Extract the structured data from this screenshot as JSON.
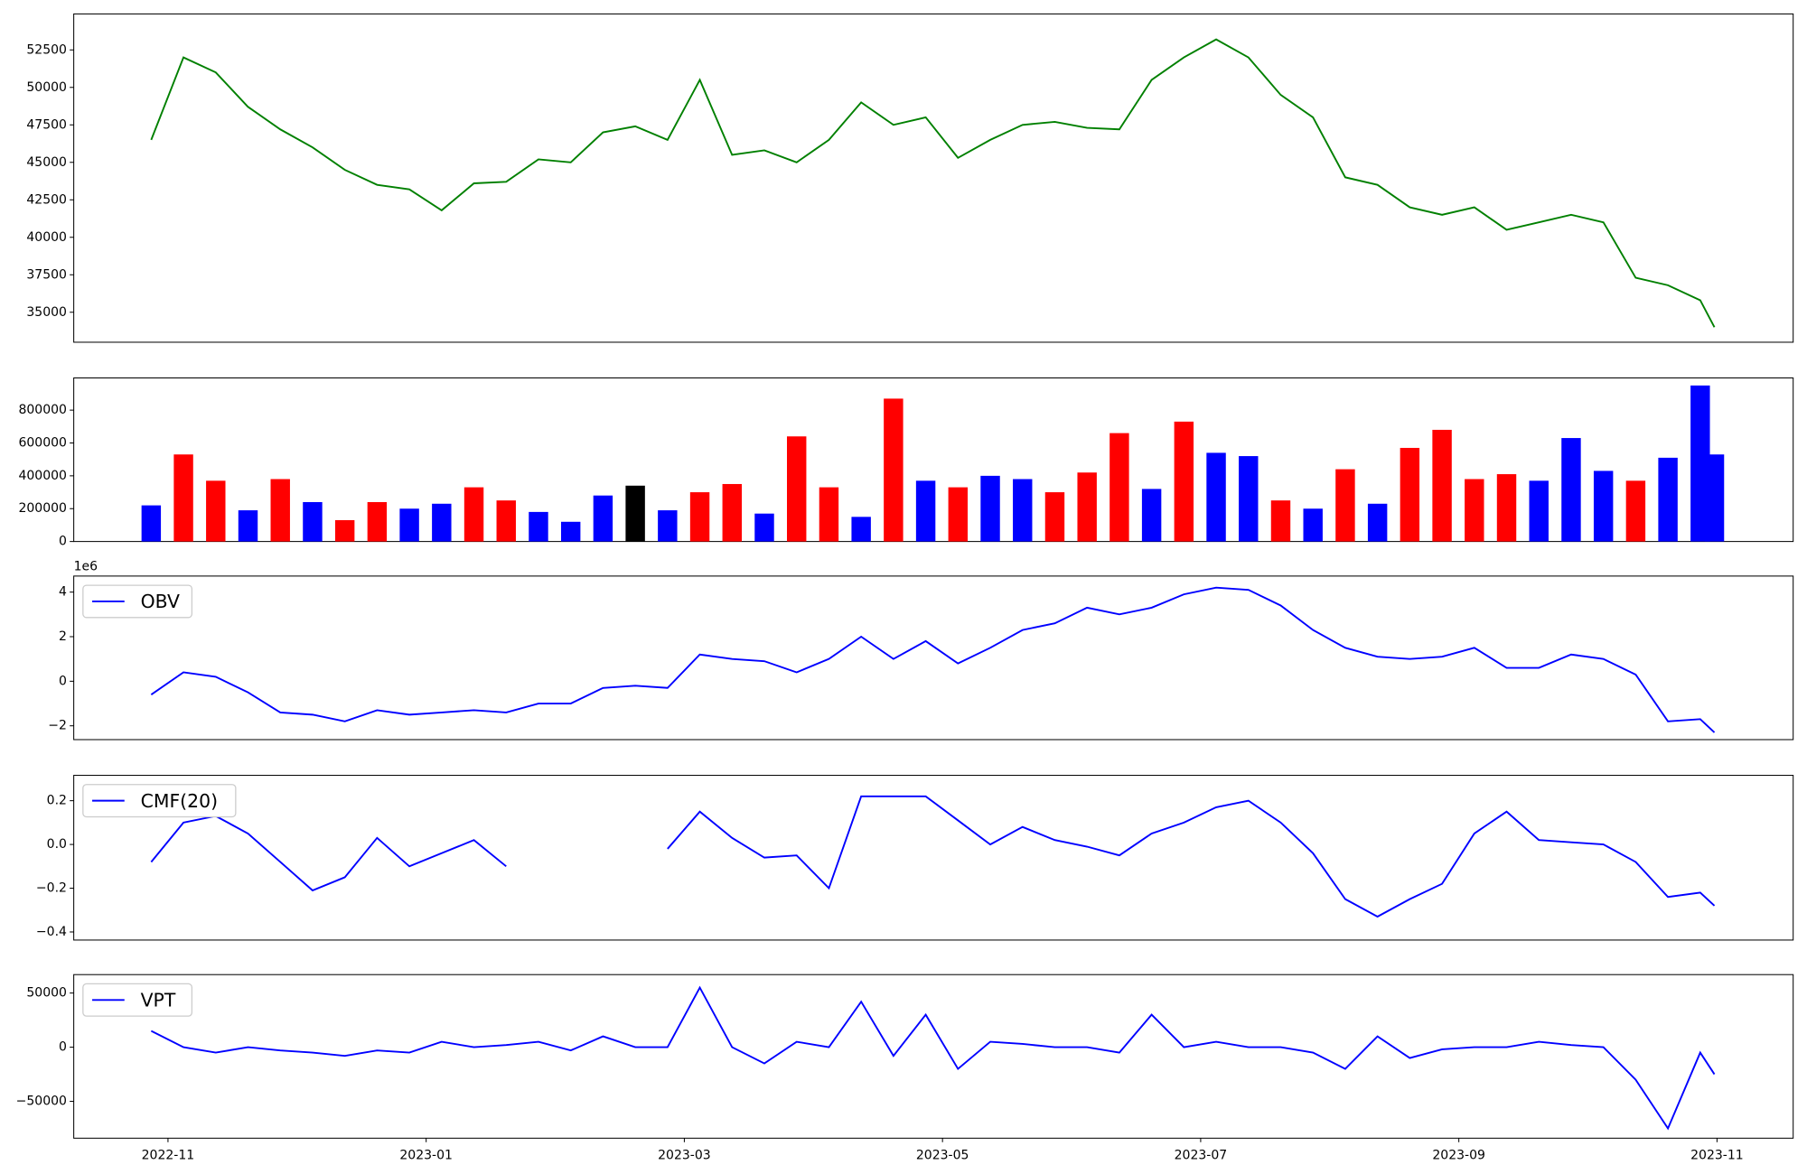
{
  "chart_data": [
    {
      "type": "line",
      "color": "green",
      "x": [
        -0.13,
        0.12,
        0.37,
        0.62,
        0.87,
        1.12,
        1.37,
        1.62,
        1.87,
        2.12,
        2.37,
        2.62,
        2.87,
        3.12,
        3.37,
        3.62,
        3.87,
        4.12,
        4.37,
        4.62,
        4.87,
        5.12,
        5.37,
        5.62,
        5.87,
        6.12,
        6.37,
        6.62,
        6.87,
        7.12,
        7.37,
        7.62,
        7.87,
        8.12,
        8.37,
        8.62,
        8.87,
        9.12,
        9.37,
        9.62,
        9.87,
        10.12,
        10.37,
        10.62,
        10.87,
        11.12,
        11.37,
        11.62,
        11.87,
        11.98
      ],
      "values": [
        46500,
        52000,
        51000,
        48700,
        47200,
        46000,
        44500,
        43500,
        43200,
        41800,
        43600,
        43700,
        45200,
        45000,
        47000,
        47400,
        46500,
        50500,
        45500,
        45800,
        45000,
        46500,
        49000,
        47500,
        48000,
        45300,
        46500,
        47500,
        47700,
        47300,
        47200,
        50500,
        52000,
        53200,
        52000,
        49500,
        48000,
        44000,
        43500,
        42000,
        41500,
        42000,
        40500,
        41000,
        41500,
        41000,
        37300,
        36800,
        35800,
        34000
      ],
      "xlim": [
        -0.73,
        12.59
      ],
      "ylim": [
        33000,
        54900
      ],
      "yticks": [
        35000,
        37500,
        40000,
        42500,
        45000,
        47500,
        50000,
        52500
      ]
    },
    {
      "type": "bar",
      "x": [
        -0.13,
        0.12,
        0.37,
        0.62,
        0.87,
        1.12,
        1.37,
        1.62,
        1.87,
        2.12,
        2.37,
        2.62,
        2.87,
        3.12,
        3.37,
        3.62,
        3.87,
        4.12,
        4.37,
        4.62,
        4.87,
        5.12,
        5.37,
        5.62,
        5.87,
        6.12,
        6.37,
        6.62,
        6.87,
        7.12,
        7.37,
        7.62,
        7.87,
        8.12,
        8.37,
        8.62,
        8.87,
        9.12,
        9.37,
        9.62,
        9.87,
        10.12,
        10.37,
        10.62,
        10.87,
        11.12,
        11.37,
        11.62,
        11.87,
        11.98
      ],
      "values": [
        220000,
        530000,
        370000,
        190000,
        380000,
        240000,
        130000,
        240000,
        200000,
        230000,
        330000,
        250000,
        180000,
        120000,
        280000,
        340000,
        190000,
        300000,
        350000,
        170000,
        640000,
        330000,
        150000,
        870000,
        370000,
        330000,
        400000,
        380000,
        300000,
        420000,
        660000,
        320000,
        730000,
        540000,
        520000,
        250000,
        200000,
        440000,
        230000,
        570000,
        680000,
        380000,
        410000,
        370000,
        630000,
        430000,
        370000,
        510000,
        950000,
        530000
      ],
      "colors": [
        "blue",
        "red",
        "red",
        "blue",
        "red",
        "blue",
        "red",
        "red",
        "blue",
        "blue",
        "red",
        "red",
        "blue",
        "blue",
        "blue",
        "black",
        "blue",
        "red",
        "red",
        "blue",
        "red",
        "red",
        "blue",
        "red",
        "blue",
        "red",
        "blue",
        "blue",
        "red",
        "red",
        "red",
        "blue",
        "red",
        "blue",
        "blue",
        "red",
        "blue",
        "red",
        "blue",
        "red",
        "red",
        "red",
        "red",
        "blue",
        "blue",
        "blue",
        "red",
        "blue",
        "blue",
        "blue"
      ],
      "xlim": [
        -0.73,
        12.59
      ],
      "ylim": [
        0,
        996000
      ],
      "yticks": [
        0,
        200000,
        400000,
        600000,
        800000
      ]
    },
    {
      "type": "line",
      "offset_text": "1e6",
      "legend": "upper left",
      "x": [
        -0.13,
        0.12,
        0.37,
        0.62,
        0.87,
        1.12,
        1.37,
        1.62,
        1.87,
        2.12,
        2.37,
        2.62,
        2.87,
        3.12,
        3.37,
        3.62,
        3.87,
        4.12,
        4.37,
        4.62,
        4.87,
        5.12,
        5.37,
        5.62,
        5.87,
        6.12,
        6.37,
        6.62,
        6.87,
        7.12,
        7.37,
        7.62,
        7.87,
        8.12,
        8.37,
        8.62,
        8.87,
        9.12,
        9.37,
        9.62,
        9.87,
        10.12,
        10.37,
        10.62,
        10.87,
        11.12,
        11.37,
        11.62,
        11.87,
        11.98
      ],
      "series": [
        {
          "name": "OBV",
          "color": "blue",
          "values": [
            -600000,
            400000,
            200000,
            -500000,
            -1400000,
            -1500000,
            -1800000,
            -1300000,
            -1500000,
            -1400000,
            -1300000,
            -1400000,
            -1000000,
            -1000000,
            -300000,
            -200000,
            -300000,
            1200000,
            1000000,
            900000,
            400000,
            1000000,
            2000000,
            1000000,
            1800000,
            800000,
            1500000,
            2300000,
            2600000,
            3300000,
            3000000,
            3300000,
            3900000,
            4200000,
            4100000,
            3400000,
            2300000,
            1500000,
            1100000,
            1000000,
            1100000,
            1500000,
            600000,
            600000,
            1200000,
            1000000,
            300000,
            -1800000,
            -1700000,
            -2300000
          ]
        }
      ],
      "xlim": [
        -0.73,
        12.59
      ],
      "ylim": [
        -2620000,
        4720000
      ],
      "yticks": [
        {
          "value": -2000000,
          "label": "−2"
        },
        {
          "value": 0,
          "label": "0"
        },
        {
          "value": 2000000,
          "label": "2"
        },
        {
          "value": 4000000,
          "label": "4"
        }
      ]
    },
    {
      "type": "line",
      "legend": "upper left",
      "x": [
        -0.13,
        0.12,
        0.37,
        0.62,
        0.87,
        1.12,
        1.37,
        1.62,
        1.87,
        2.12,
        2.37,
        2.62,
        2.87,
        3.12,
        3.37,
        3.62,
        3.87,
        4.12,
        4.37,
        4.62,
        4.87,
        5.12,
        5.37,
        5.62,
        5.87,
        6.12,
        6.37,
        6.62,
        6.87,
        7.12,
        7.37,
        7.62,
        7.87,
        8.12,
        8.37,
        8.62,
        8.87,
        9.12,
        9.37,
        9.62,
        9.87,
        10.12,
        10.37,
        10.62,
        10.87,
        11.12,
        11.37,
        11.62,
        11.87,
        11.98
      ],
      "series": [
        {
          "name": "CMF(20)",
          "color": "blue",
          "values": [
            -0.08,
            0.1,
            0.13,
            0.05,
            -0.08,
            -0.21,
            -0.15,
            0.03,
            -0.1,
            -0.04,
            0.02,
            -0.1,
            null,
            null,
            null,
            null,
            -0.02,
            0.15,
            0.03,
            -0.06,
            -0.05,
            -0.2,
            0.22,
            0.22,
            0.22,
            0.11,
            0.0,
            0.08,
            0.02,
            -0.01,
            -0.05,
            0.05,
            0.1,
            0.17,
            0.2,
            0.1,
            -0.04,
            -0.25,
            -0.33,
            -0.25,
            -0.18,
            0.05,
            0.15,
            0.02,
            0.01,
            0.0,
            -0.08,
            -0.24,
            -0.22,
            -0.28
          ]
        }
      ],
      "xlim": [
        -0.73,
        12.59
      ],
      "ylim": [
        -0.437,
        0.316
      ],
      "yticks": [
        {
          "value": -0.4,
          "label": "−0.4"
        },
        {
          "value": -0.2,
          "label": "−0.2"
        },
        {
          "value": 0,
          "label": "0.0"
        },
        0.2
      ]
    },
    {
      "type": "line",
      "legend": "upper left",
      "x": [
        -0.13,
        0.12,
        0.37,
        0.62,
        0.87,
        1.12,
        1.37,
        1.62,
        1.87,
        2.12,
        2.37,
        2.62,
        2.87,
        3.12,
        3.37,
        3.62,
        3.87,
        4.12,
        4.37,
        4.62,
        4.87,
        5.12,
        5.37,
        5.62,
        5.87,
        6.12,
        6.37,
        6.62,
        6.87,
        7.12,
        7.37,
        7.62,
        7.87,
        8.12,
        8.37,
        8.62,
        8.87,
        9.12,
        9.37,
        9.62,
        9.87,
        10.12,
        10.37,
        10.62,
        10.87,
        11.12,
        11.37,
        11.62,
        11.87,
        11.98
      ],
      "series": [
        {
          "name": "VPT",
          "color": "blue",
          "values": [
            15000,
            0,
            -5000,
            0,
            -3000,
            -5000,
            -8000,
            -3000,
            -5000,
            5000,
            0,
            2000,
            5000,
            -3000,
            10000,
            0,
            0,
            55000,
            0,
            -15000,
            5000,
            0,
            42000,
            -8000,
            30000,
            -20000,
            5000,
            3000,
            0,
            0,
            -5000,
            30000,
            0,
            5000,
            0,
            0,
            -5000,
            -20000,
            10000,
            -10000,
            -2000,
            0,
            0,
            5000,
            2000,
            0,
            -30000,
            -75000,
            -5000,
            -25000
          ]
        }
      ],
      "xlim": [
        -0.73,
        12.59
      ],
      "ylim": [
        -84000,
        67000
      ],
      "yticks": [
        {
          "value": -50000,
          "label": "−50000"
        },
        0,
        50000
      ],
      "xticks": [
        {
          "value": 0,
          "label": "2022-11"
        },
        {
          "value": 2,
          "label": "2023-01"
        },
        {
          "value": 4,
          "label": "2023-03"
        },
        {
          "value": 6,
          "label": "2023-05"
        },
        {
          "value": 8,
          "label": "2023-07"
        },
        {
          "value": 10,
          "label": "2023-09"
        },
        {
          "value": 12,
          "label": "2023-11"
        }
      ]
    }
  ]
}
